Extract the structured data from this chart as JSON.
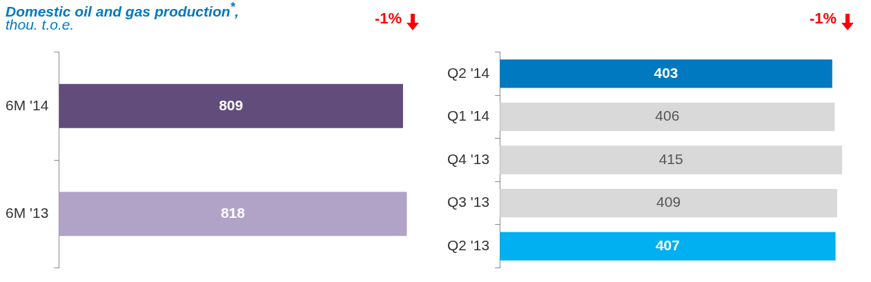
{
  "chart_data": [
    {
      "type": "bar",
      "orientation": "horizontal",
      "title": "Domestic oil and gas production$^{*}$,",
      "subtitle": "thou. t.o.e.",
      "annotations": [
        "-1%"
      ],
      "categories": [
        "6M '14",
        "6M '13"
      ],
      "values": [
        809,
        818
      ],
      "colors": [
        "#614c7c",
        "#b1a3c8"
      ],
      "tick_labels": "y",
      "data_labels": true
    },
    {
      "type": "bar",
      "orientation": "horizontal",
      "annotations": [
        "-1%"
      ],
      "categories": [
        "Q2 '14",
        "Q1 '14",
        "Q4 '13",
        "Q3 '13",
        "Q2 '13"
      ],
      "values": [
        403,
        406,
        415,
        409,
        407
      ],
      "colors": [
        "#0079c1",
        "#d9d9d9",
        "#d9d9d9",
        "#d9d9d9",
        "#00b0f0"
      ],
      "tick_labels": "y",
      "data_labels": true
    }
  ]
}
